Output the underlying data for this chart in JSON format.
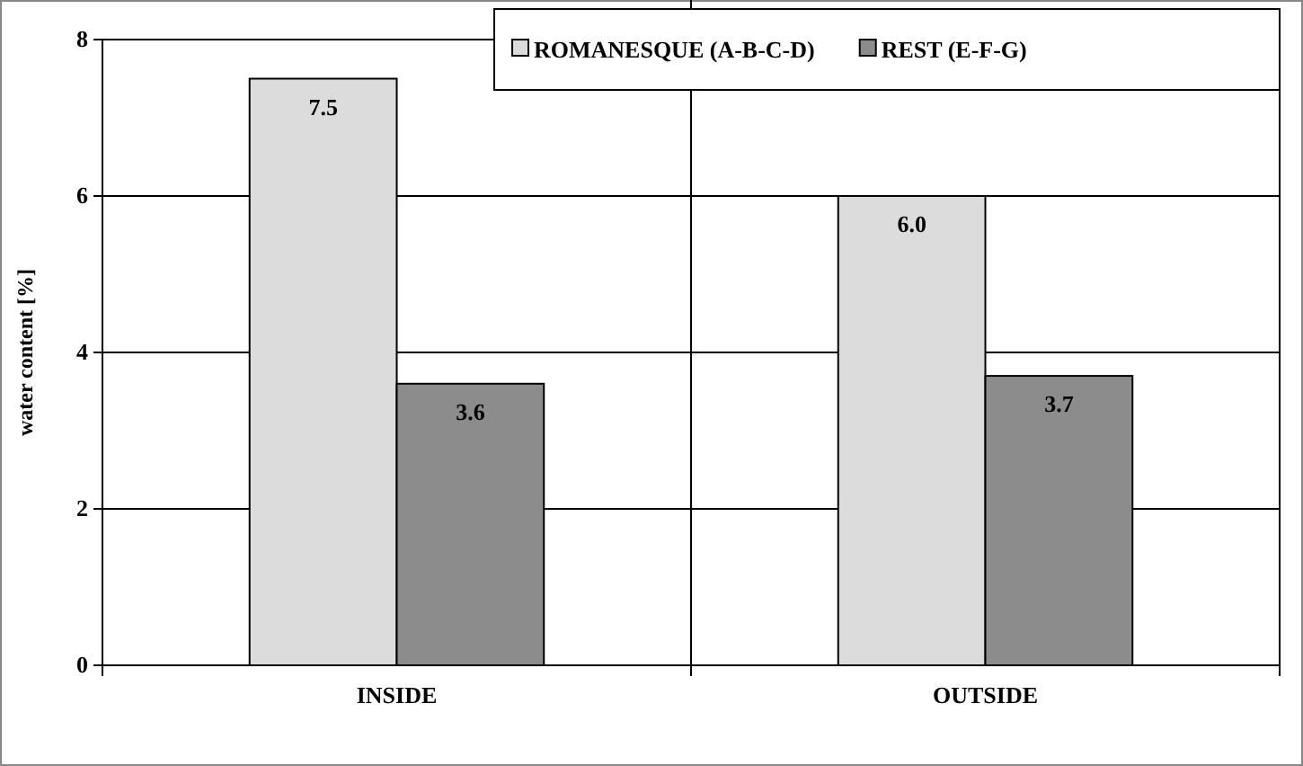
{
  "chart_data": {
    "type": "bar",
    "ylabel": "water content [%]",
    "categories": [
      "INSIDE",
      "OUTSIDE"
    ],
    "series": [
      {
        "name": "ROMANESQUE (A-B-C-D)",
        "color": "#dcdcdc",
        "values": [
          7.5,
          6.0
        ],
        "value_labels": [
          "7.5",
          "6.0"
        ]
      },
      {
        "name": "REST (E-F-G)",
        "color": "#8c8c8c",
        "values": [
          3.6,
          3.7
        ],
        "value_labels": [
          "3.6",
          "3.7"
        ]
      }
    ],
    "ylim": [
      0,
      8
    ],
    "yticks": [
      0,
      2,
      4,
      6,
      8
    ],
    "grid": "y",
    "legend": "top right"
  }
}
